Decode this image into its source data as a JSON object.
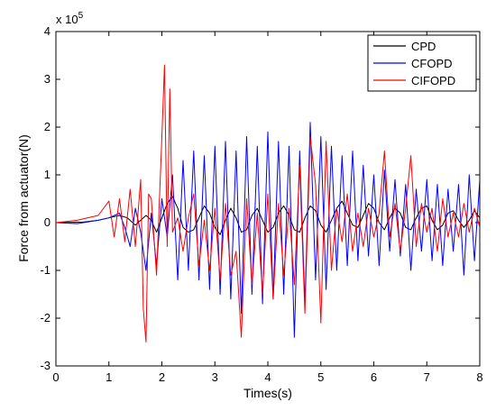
{
  "chart_data": {
    "type": "line",
    "title": "",
    "xlabel": "Times(s)",
    "ylabel": "Force from actuator(N)",
    "y_exponent_label": "x 10",
    "y_exponent_power": "5",
    "xlim": [
      0,
      8
    ],
    "ylim": [
      -3,
      4
    ],
    "xticks": [
      0,
      1,
      2,
      3,
      4,
      5,
      6,
      7,
      8
    ],
    "yticks": [
      -3,
      -2,
      -1,
      0,
      1,
      2,
      3,
      4
    ],
    "grid": false,
    "legend_position": "top-right",
    "series": [
      {
        "name": "CPD",
        "color": "#000000",
        "x": [
          0,
          0.5,
          0.8,
          1.0,
          1.2,
          1.35,
          1.5,
          1.6,
          1.7,
          1.8,
          1.9,
          2.0,
          2.1,
          2.2,
          2.3,
          2.4,
          2.5,
          2.6,
          2.7,
          2.8,
          2.9,
          3.0,
          3.1,
          3.2,
          3.3,
          3.4,
          3.5,
          3.6,
          3.7,
          3.8,
          3.9,
          4.0,
          4.1,
          4.2,
          4.3,
          4.4,
          4.5,
          4.6,
          4.7,
          4.8,
          4.9,
          5.0,
          5.1,
          5.2,
          5.3,
          5.4,
          5.5,
          5.6,
          5.7,
          5.8,
          5.9,
          6.0,
          6.1,
          6.2,
          6.3,
          6.4,
          6.5,
          6.6,
          6.7,
          6.8,
          6.9,
          7.0,
          7.1,
          7.2,
          7.3,
          7.4,
          7.5,
          7.6,
          7.7,
          7.8,
          7.9,
          8.0
        ],
        "y": [
          0,
          0.01,
          0.05,
          0.1,
          0.15,
          0.1,
          -0.05,
          0.05,
          0.15,
          0.05,
          -0.2,
          0.1,
          0.4,
          0.55,
          0.3,
          -0.1,
          -0.2,
          -0.15,
          0.1,
          0.35,
          0.2,
          -0.1,
          -0.25,
          0.05,
          0.3,
          0.1,
          -0.2,
          -0.15,
          0.15,
          0.3,
          0.05,
          -0.2,
          -0.1,
          0.2,
          0.35,
          0.15,
          -0.15,
          -0.2,
          0.1,
          0.35,
          0.25,
          -0.05,
          -0.2,
          0.05,
          0.3,
          0.45,
          0.2,
          -0.05,
          -0.1,
          0.15,
          0.4,
          0.3,
          0.0,
          -0.15,
          0.1,
          0.3,
          0.2,
          -0.1,
          -0.15,
          0.1,
          0.3,
          0.35,
          0.05,
          -0.15,
          -0.05,
          0.2,
          0.25,
          0.05,
          -0.1,
          0.05,
          0.25,
          0.1
        ]
      },
      {
        "name": "CFOPD",
        "color": "#0000ff",
        "x": [
          0,
          0.4,
          0.8,
          1.0,
          1.2,
          1.3,
          1.4,
          1.5,
          1.6,
          1.7,
          1.8,
          1.9,
          2.0,
          2.1,
          2.2,
          2.3,
          2.4,
          2.5,
          2.6,
          2.7,
          2.8,
          2.9,
          3.0,
          3.1,
          3.2,
          3.3,
          3.4,
          3.5,
          3.6,
          3.7,
          3.8,
          3.9,
          4.0,
          4.1,
          4.2,
          4.3,
          4.4,
          4.5,
          4.6,
          4.7,
          4.8,
          4.9,
          5.0,
          5.1,
          5.2,
          5.3,
          5.4,
          5.5,
          5.6,
          5.7,
          5.8,
          5.9,
          6.0,
          6.1,
          6.2,
          6.3,
          6.4,
          6.5,
          6.6,
          6.7,
          6.8,
          6.9,
          7.0,
          7.1,
          7.2,
          7.3,
          7.4,
          7.5,
          7.6,
          7.7,
          7.8,
          7.9,
          8.0
        ],
        "y": [
          0,
          -0.02,
          0.05,
          0.1,
          0.2,
          -0.1,
          -0.5,
          0.3,
          -0.2,
          -1.0,
          0.2,
          -0.9,
          0.5,
          -0.3,
          1.0,
          -1.2,
          1.3,
          -1.0,
          1.5,
          -1.2,
          1.4,
          -1.4,
          1.6,
          -1.5,
          1.7,
          -1.6,
          1.5,
          -1.9,
          1.8,
          -1.5,
          1.6,
          -1.7,
          1.9,
          -1.6,
          1.7,
          -1.5,
          1.6,
          -2.4,
          1.5,
          -1.7,
          2.1,
          -1.2,
          1.8,
          -1.4,
          1.6,
          -1.0,
          1.4,
          -0.9,
          1.5,
          -0.8,
          1.2,
          -0.7,
          1.0,
          -0.9,
          1.1,
          -0.6,
          0.9,
          -0.7,
          0.8,
          -1.0,
          0.7,
          -0.6,
          0.9,
          -0.8,
          0.8,
          -0.9,
          0.7,
          -0.6,
          0.8,
          -1.1,
          1.0,
          -0.8,
          0.9
        ]
      },
      {
        "name": "CIFOPD",
        "color": "#ff0000",
        "x": [
          0,
          0.4,
          0.8,
          1.0,
          1.1,
          1.2,
          1.3,
          1.4,
          1.5,
          1.6,
          1.65,
          1.7,
          1.75,
          1.8,
          1.9,
          2.0,
          2.05,
          2.1,
          2.15,
          2.2,
          2.3,
          2.4,
          2.5,
          2.6,
          2.7,
          2.8,
          2.9,
          3.0,
          3.1,
          3.2,
          3.3,
          3.4,
          3.5,
          3.6,
          3.7,
          3.8,
          3.9,
          4.0,
          4.1,
          4.2,
          4.3,
          4.4,
          4.5,
          4.6,
          4.7,
          4.8,
          4.9,
          5.0,
          5.1,
          5.2,
          5.3,
          5.4,
          5.5,
          5.6,
          5.7,
          5.8,
          5.9,
          6.0,
          6.1,
          6.2,
          6.3,
          6.4,
          6.5,
          6.6,
          6.7,
          6.8,
          6.9,
          7.0,
          7.1,
          7.2,
          7.3,
          7.4,
          7.5,
          7.6,
          7.7,
          7.8,
          7.9,
          8.0
        ],
        "y": [
          0,
          0.05,
          0.15,
          0.45,
          -0.3,
          0.5,
          -0.4,
          0.7,
          -0.5,
          0.9,
          -1.8,
          -2.5,
          0.6,
          0.5,
          -1.1,
          1.8,
          3.3,
          -0.5,
          2.8,
          -0.2,
          0.1,
          -0.6,
          0.1,
          0.6,
          -0.9,
          0.05,
          -1.0,
          0.3,
          -1.2,
          0.4,
          -1.1,
          -0.6,
          -2.4,
          0.5,
          -1.3,
          0.2,
          -1.5,
          0.6,
          -1.6,
          0.4,
          -1.1,
          0.3,
          -1.3,
          1.2,
          -1.9,
          1.8,
          0.8,
          -2.1,
          1.7,
          -1.0,
          0.3,
          -0.4,
          0.6,
          -0.6,
          0.2,
          -0.5,
          0.3,
          -0.3,
          0.2,
          1.5,
          -0.3,
          0.4,
          -0.6,
          0.3,
          1.4,
          -0.5,
          0.4,
          -0.2,
          0.3,
          -0.6,
          0.5,
          -0.3,
          0.2,
          -0.3,
          0.4,
          -0.2,
          0.3,
          -0.1
        ]
      }
    ]
  }
}
